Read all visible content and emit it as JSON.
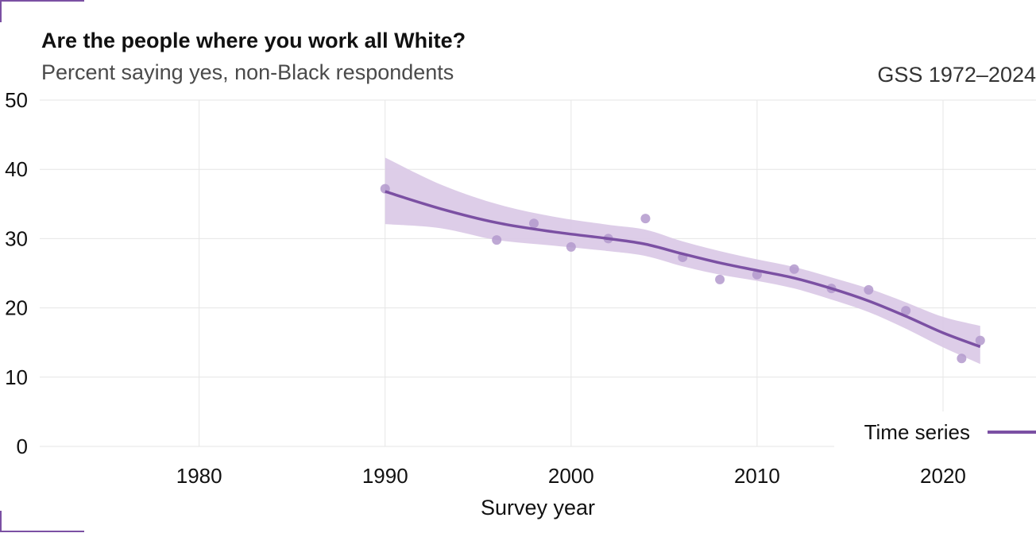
{
  "title": "Are the people where you work all White?",
  "subtitle": "Percent saying yes, non-Black respondents",
  "source": "GSS 1972–2024",
  "colors": {
    "series": "#7b50a3",
    "points": "#b399cc",
    "ribbon": "#d9c8e6",
    "grid": "#e6e6e6",
    "accent": "#7b50a3"
  },
  "chart_data": {
    "type": "scatter",
    "title": "Are the people where you work all White?",
    "subtitle": "Percent saying yes, non-Black respondents",
    "xlabel": "Survey year",
    "ylabel": "",
    "xlim": [
      1971,
      2025
    ],
    "ylim": [
      0,
      50
    ],
    "xticks": [
      1980,
      1990,
      2000,
      2010,
      2020
    ],
    "yticks": [
      0,
      10,
      20,
      30,
      40,
      50
    ],
    "grid": true,
    "legend": {
      "label": "Time series",
      "position": "bottom-right"
    },
    "points": [
      {
        "x": 1990,
        "y": 37.2
      },
      {
        "x": 1996,
        "y": 29.8
      },
      {
        "x": 1998,
        "y": 32.2
      },
      {
        "x": 2000,
        "y": 28.8
      },
      {
        "x": 2002,
        "y": 30.0
      },
      {
        "x": 2004,
        "y": 32.9
      },
      {
        "x": 2006,
        "y": 27.3
      },
      {
        "x": 2008,
        "y": 24.1
      },
      {
        "x": 2010,
        "y": 24.8
      },
      {
        "x": 2012,
        "y": 25.6
      },
      {
        "x": 2014,
        "y": 22.8
      },
      {
        "x": 2016,
        "y": 22.6
      },
      {
        "x": 2018,
        "y": 19.6
      },
      {
        "x": 2021,
        "y": 12.7
      },
      {
        "x": 2022,
        "y": 15.3
      }
    ],
    "trend": [
      {
        "x": 1990,
        "y": 36.8,
        "lo": 32.1,
        "hi": 41.7
      },
      {
        "x": 1993,
        "y": 34.3,
        "lo": 31.5,
        "hi": 37.8
      },
      {
        "x": 1996,
        "y": 32.3,
        "lo": 29.8,
        "hi": 35.0
      },
      {
        "x": 1999,
        "y": 31.0,
        "lo": 29.0,
        "hi": 33.2
      },
      {
        "x": 2002,
        "y": 30.0,
        "lo": 28.2,
        "hi": 32.0
      },
      {
        "x": 2004,
        "y": 29.2,
        "lo": 27.5,
        "hi": 31.3
      },
      {
        "x": 2006,
        "y": 27.8,
        "lo": 26.0,
        "hi": 29.6
      },
      {
        "x": 2008,
        "y": 26.5,
        "lo": 24.8,
        "hi": 28.2
      },
      {
        "x": 2010,
        "y": 25.4,
        "lo": 23.9,
        "hi": 27.0
      },
      {
        "x": 2012,
        "y": 24.3,
        "lo": 22.8,
        "hi": 25.9
      },
      {
        "x": 2014,
        "y": 22.8,
        "lo": 21.2,
        "hi": 24.4
      },
      {
        "x": 2016,
        "y": 21.0,
        "lo": 19.4,
        "hi": 22.8
      },
      {
        "x": 2018,
        "y": 18.8,
        "lo": 17.0,
        "hi": 20.8
      },
      {
        "x": 2020,
        "y": 16.4,
        "lo": 14.3,
        "hi": 18.7
      },
      {
        "x": 2022,
        "y": 14.4,
        "lo": 11.9,
        "hi": 17.4
      }
    ]
  }
}
